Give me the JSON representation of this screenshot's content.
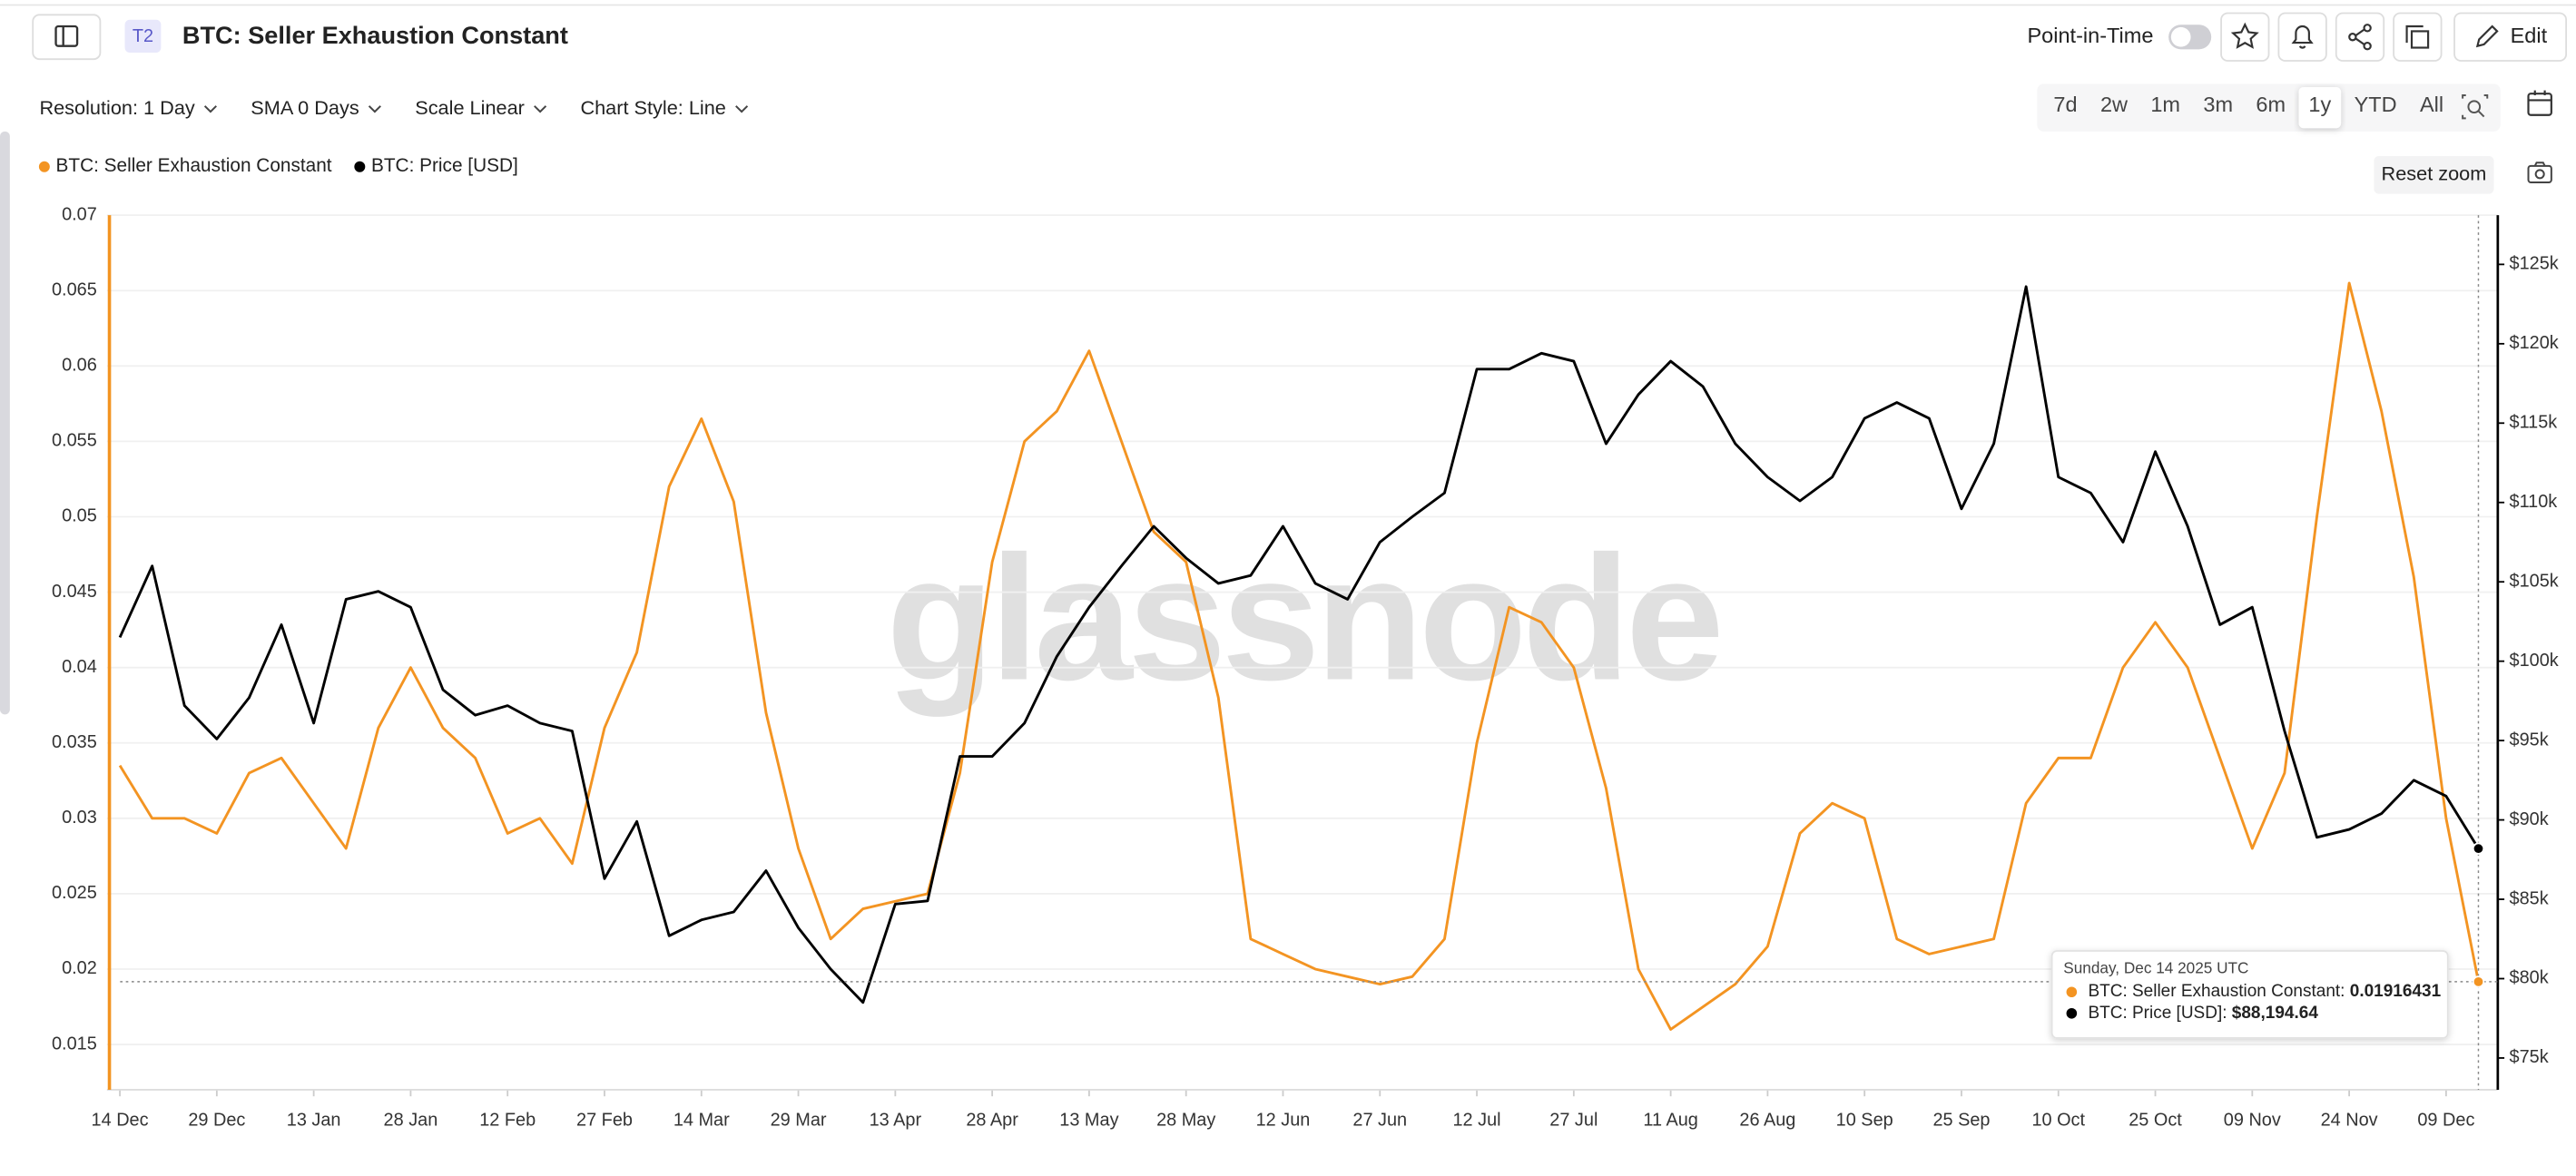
{
  "header": {
    "badge": "T2",
    "title": "BTC: Seller Exhaustion Constant",
    "point_in_time": "Point-in-Time",
    "edit": "Edit"
  },
  "controls": {
    "dropdowns": [
      "Resolution: 1 Day",
      "SMA 0 Days",
      "Scale Linear",
      "Chart Style: Line"
    ],
    "ranges": [
      {
        "label": "7d",
        "selected": false
      },
      {
        "label": "2w",
        "selected": false
      },
      {
        "label": "1m",
        "selected": false
      },
      {
        "label": "3m",
        "selected": false
      },
      {
        "label": "6m",
        "selected": false
      },
      {
        "label": "1y",
        "selected": true
      },
      {
        "label": "YTD",
        "selected": false
      },
      {
        "label": "All",
        "selected": false
      }
    ],
    "reset_zoom": "Reset zoom"
  },
  "watermark": "glassnode",
  "tooltip": {
    "title": "Sunday, Dec 14 2025 UTC",
    "rows": [
      {
        "name": "BTC: Seller Exhaustion Constant:",
        "value": "0.01916431"
      },
      {
        "name": "BTC: Price [USD]:",
        "value": "$88,194.64"
      }
    ]
  },
  "chart_data": {
    "type": "line",
    "legend": "top-left",
    "grid": true,
    "x": [
      "2024-12-14",
      "2024-12-19",
      "2024-12-24",
      "2024-12-29",
      "2025-01-03",
      "2025-01-08",
      "2025-01-13",
      "2025-01-18",
      "2025-01-23",
      "2025-01-28",
      "2025-02-02",
      "2025-02-07",
      "2025-02-12",
      "2025-02-17",
      "2025-02-22",
      "2025-02-27",
      "2025-03-04",
      "2025-03-09",
      "2025-03-14",
      "2025-03-19",
      "2025-03-24",
      "2025-03-29",
      "2025-04-03",
      "2025-04-08",
      "2025-04-13",
      "2025-04-18",
      "2025-04-23",
      "2025-04-28",
      "2025-05-03",
      "2025-05-08",
      "2025-05-13",
      "2025-05-18",
      "2025-05-23",
      "2025-05-28",
      "2025-06-02",
      "2025-06-07",
      "2025-06-12",
      "2025-06-17",
      "2025-06-22",
      "2025-06-27",
      "2025-07-02",
      "2025-07-07",
      "2025-07-12",
      "2025-07-17",
      "2025-07-22",
      "2025-07-27",
      "2025-08-01",
      "2025-08-06",
      "2025-08-11",
      "2025-08-16",
      "2025-08-21",
      "2025-08-26",
      "2025-08-31",
      "2025-09-05",
      "2025-09-10",
      "2025-09-15",
      "2025-09-20",
      "2025-09-25",
      "2025-09-30",
      "2025-10-05",
      "2025-10-10",
      "2025-10-15",
      "2025-10-20",
      "2025-10-25",
      "2025-10-30",
      "2025-11-04",
      "2025-11-09",
      "2025-11-14",
      "2025-11-19",
      "2025-11-24",
      "2025-11-29",
      "2025-12-04",
      "2025-12-09",
      "2025-12-14"
    ],
    "xlim": [
      "2024-12-12",
      "2025-12-17"
    ],
    "xticks": [
      {
        "value": "2024-12-14",
        "label": "14 Dec"
      },
      {
        "value": "2024-12-29",
        "label": "29 Dec"
      },
      {
        "value": "2025-01-13",
        "label": "13 Jan"
      },
      {
        "value": "2025-01-28",
        "label": "28 Jan"
      },
      {
        "value": "2025-02-12",
        "label": "12 Feb"
      },
      {
        "value": "2025-02-27",
        "label": "27 Feb"
      },
      {
        "value": "2025-03-14",
        "label": "14 Mar"
      },
      {
        "value": "2025-03-29",
        "label": "29 Mar"
      },
      {
        "value": "2025-04-13",
        "label": "13 Apr"
      },
      {
        "value": "2025-04-28",
        "label": "28 Apr"
      },
      {
        "value": "2025-05-13",
        "label": "13 May"
      },
      {
        "value": "2025-05-28",
        "label": "28 May"
      },
      {
        "value": "2025-06-12",
        "label": "12 Jun"
      },
      {
        "value": "2025-06-27",
        "label": "27 Jun"
      },
      {
        "value": "2025-07-12",
        "label": "12 Jul"
      },
      {
        "value": "2025-07-27",
        "label": "27 Jul"
      },
      {
        "value": "2025-08-11",
        "label": "11 Aug"
      },
      {
        "value": "2025-08-26",
        "label": "26 Aug"
      },
      {
        "value": "2025-09-10",
        "label": "10 Sep"
      },
      {
        "value": "2025-09-25",
        "label": "25 Sep"
      },
      {
        "value": "2025-10-10",
        "label": "10 Oct"
      },
      {
        "value": "2025-10-25",
        "label": "25 Oct"
      },
      {
        "value": "2025-11-09",
        "label": "09 Nov"
      },
      {
        "value": "2025-11-24",
        "label": "24 Nov"
      },
      {
        "value": "2025-12-09",
        "label": "09 Dec"
      }
    ],
    "ylim": [
      0.012,
      0.07
    ],
    "yticks": [
      0.015,
      0.02,
      0.025,
      0.03,
      0.035,
      0.04,
      0.045,
      0.05,
      0.055,
      0.06,
      0.065,
      0.07
    ],
    "y2lim": [
      73000,
      128100
    ],
    "y2ticks": [
      {
        "value": 75000,
        "label": "$75k"
      },
      {
        "value": 80000,
        "label": "$80k"
      },
      {
        "value": 85000,
        "label": "$85k"
      },
      {
        "value": 90000,
        "label": "$90k"
      },
      {
        "value": 95000,
        "label": "$95k"
      },
      {
        "value": 100000,
        "label": "$100k"
      },
      {
        "value": 105000,
        "label": "$105k"
      },
      {
        "value": 110000,
        "label": "$110k"
      },
      {
        "value": 115000,
        "label": "$115k"
      },
      {
        "value": 120000,
        "label": "$120k"
      },
      {
        "value": 125000,
        "label": "$125k"
      }
    ],
    "series": [
      {
        "name": "BTC: Seller Exhaustion Constant",
        "color": "#f39422",
        "axis": "y",
        "values": [
          0.0335,
          0.03,
          0.03,
          0.029,
          0.033,
          0.034,
          0.031,
          0.028,
          0.036,
          0.04,
          0.036,
          0.034,
          0.029,
          0.03,
          0.027,
          0.036,
          0.041,
          0.052,
          0.0565,
          0.051,
          0.037,
          0.028,
          0.022,
          0.024,
          0.0245,
          0.025,
          0.033,
          0.047,
          0.055,
          0.057,
          0.061,
          0.055,
          0.049,
          0.047,
          0.038,
          0.022,
          0.021,
          0.02,
          0.0195,
          0.019,
          0.0195,
          0.022,
          0.035,
          0.044,
          0.043,
          0.04,
          0.032,
          0.02,
          0.016,
          0.0175,
          0.019,
          0.0215,
          0.029,
          0.031,
          0.03,
          0.022,
          0.021,
          0.0215,
          0.022,
          0.031,
          0.034,
          0.034,
          0.04,
          0.043,
          0.04,
          0.034,
          0.028,
          0.033,
          0.05,
          0.0655,
          0.057,
          0.046,
          0.03,
          0.01916431
        ]
      },
      {
        "name": "BTC: Price [USD]",
        "color": "#000000",
        "axis": "y2",
        "values": [
          101500,
          106000,
          97200,
          95100,
          97700,
          102300,
          96100,
          103900,
          104400,
          103400,
          98200,
          96600,
          97200,
          96100,
          95600,
          86300,
          89900,
          82700,
          83700,
          84200,
          86800,
          83200,
          80600,
          78500,
          84700,
          84900,
          94000,
          94000,
          96100,
          100300,
          103400,
          106000,
          108500,
          106500,
          104900,
          105400,
          108500,
          104900,
          103900,
          107500,
          109100,
          110600,
          118400,
          118400,
          119400,
          118900,
          113700,
          116800,
          118900,
          117300,
          113700,
          111600,
          110100,
          111600,
          115300,
          116300,
          115300,
          109600,
          113700,
          123600,
          111600,
          110600,
          107500,
          113200,
          108500,
          102300,
          103400,
          95600,
          88900,
          89400,
          90400,
          92500,
          91500,
          88194.64
        ]
      }
    ]
  }
}
